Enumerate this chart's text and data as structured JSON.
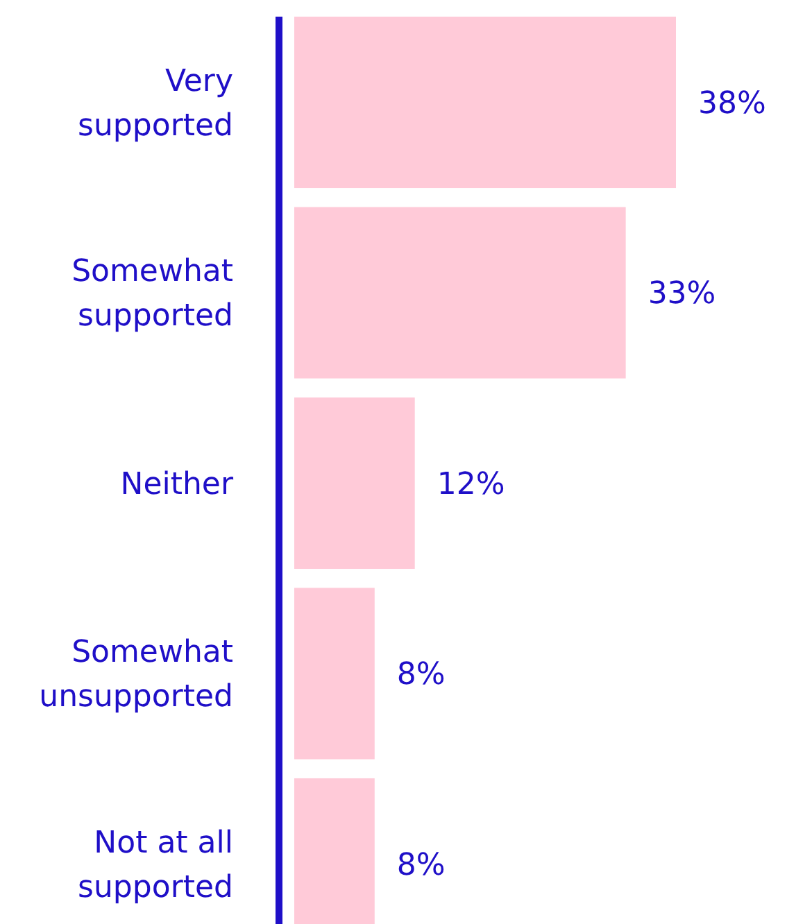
{
  "chart_data": {
    "type": "bar",
    "orientation": "horizontal",
    "categories": [
      "Very supported",
      "Somewhat supported",
      "Neither",
      "Somewhat unsupported",
      "Not at all supported"
    ],
    "values": [
      38,
      33,
      12,
      8,
      8
    ],
    "value_labels": [
      "38%",
      "33%",
      "12%",
      "8%",
      "8%"
    ],
    "color": "#ffcad8"
  }
}
